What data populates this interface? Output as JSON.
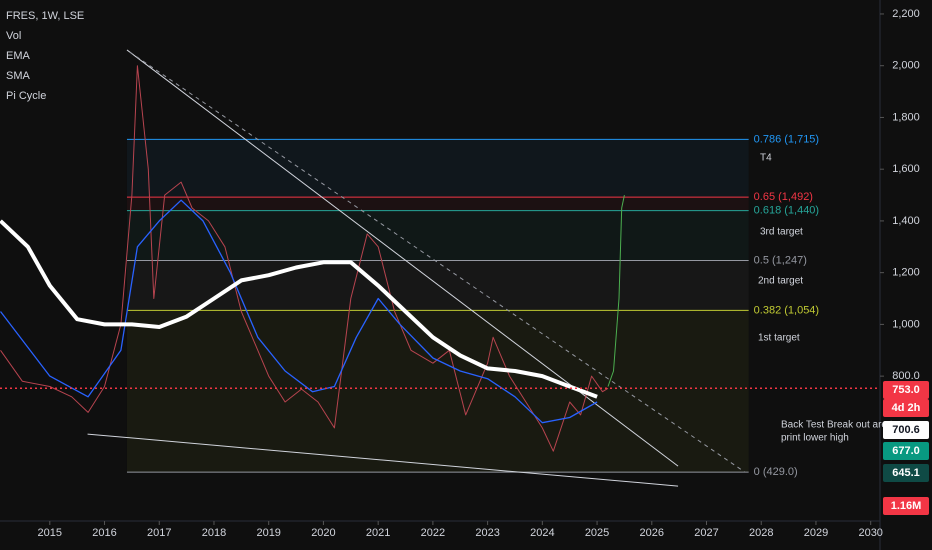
{
  "chart_data": {
    "type": "line",
    "title": "FRES, 1W, LSE",
    "indicators": [
      "Vol",
      "EMA",
      "SMA",
      "Pi Cycle"
    ],
    "xlim": [
      2014.09,
      2030.17
    ],
    "ylim": [
      240,
      2254
    ],
    "xticks": [
      2015,
      2016,
      2017,
      2018,
      2019,
      2020,
      2021,
      2022,
      2023,
      2024,
      2025,
      2026,
      2027,
      2028,
      2029,
      2030
    ],
    "yticks": [
      {
        "value": 800,
        "label": "800.0"
      },
      {
        "value": 1000,
        "label": "1,000"
      },
      {
        "value": 1200,
        "label": "1,200"
      },
      {
        "value": 1400,
        "label": "1,400"
      },
      {
        "value": 1600,
        "label": "1,600"
      },
      {
        "value": 1800,
        "label": "1,800"
      },
      {
        "value": 2000,
        "label": "2,000"
      },
      {
        "value": 2200,
        "label": "2,200"
      }
    ],
    "series": [
      {
        "color": "#b7444f",
        "width": 1,
        "x": [
          2014.1,
          2014.5,
          2015,
          2015.4,
          2015.7,
          2016,
          2016.3,
          2016.5,
          2016.6,
          2016.8,
          2016.9,
          2017.1,
          2017.4,
          2017.6,
          2017.9,
          2018.2,
          2018.5,
          2018.8,
          2019,
          2019.3,
          2019.6,
          2019.9,
          2020.2,
          2020.5,
          2020.8,
          2021,
          2021.3,
          2021.6,
          2022,
          2022.3,
          2022.6,
          2023,
          2023.1,
          2023.4,
          2023.7,
          2024,
          2024.2,
          2024.5,
          2024.7,
          2024.9,
          2025.1,
          2025.2
        ],
        "values": [
          900,
          780,
          760,
          720,
          660,
          760,
          1000,
          1500,
          2000,
          1600,
          1100,
          1500,
          1550,
          1450,
          1400,
          1300,
          1050,
          900,
          800,
          700,
          750,
          700,
          600,
          1100,
          1350,
          1300,
          1050,
          900,
          850,
          900,
          650,
          850,
          950,
          800,
          700,
          600,
          510,
          700,
          650,
          800,
          740,
          753
        ]
      },
      {
        "color": "#2962ff",
        "width": 1.3,
        "x": [
          2014.1,
          2015,
          2015.7,
          2016.3,
          2016.6,
          2017,
          2017.4,
          2017.8,
          2018.3,
          2018.8,
          2019.3,
          2019.8,
          2020.2,
          2020.6,
          2021,
          2021.4,
          2022,
          2022.5,
          2023,
          2023.5,
          2024,
          2024.5,
          2025
        ],
        "values": [
          1050,
          800,
          720,
          900,
          1300,
          1400,
          1480,
          1400,
          1200,
          950,
          820,
          740,
          760,
          950,
          1100,
          1000,
          870,
          820,
          790,
          720,
          620,
          640,
          700
        ]
      },
      {
        "color": "#ffffff",
        "width": 4,
        "x": [
          2014.1,
          2014.6,
          2015,
          2015.5,
          2016,
          2016.5,
          2017,
          2017.5,
          2018,
          2018.5,
          2019,
          2019.5,
          2020,
          2020.5,
          2021,
          2021.5,
          2022,
          2022.5,
          2023,
          2023.5,
          2024,
          2024.5,
          2025
        ],
        "values": [
          1400,
          1300,
          1150,
          1020,
          1000,
          1000,
          990,
          1030,
          1100,
          1170,
          1190,
          1220,
          1240,
          1240,
          1150,
          1050,
          950,
          880,
          830,
          820,
          800,
          760,
          720
        ]
      },
      {
        "color": "#4caf50",
        "width": 1,
        "x": [
          2025.2,
          2025.3,
          2025.4,
          2025.45,
          2025.5
        ],
        "values": [
          760,
          820,
          1100,
          1450,
          1500
        ]
      }
    ],
    "trendlines": [
      {
        "color": "#d1d4dc",
        "dash": false,
        "x": [
          2016.41,
          2026.48
        ],
        "values": [
          2061,
          452
        ]
      },
      {
        "color": "#9598a1",
        "dash": true,
        "x": [
          2016.46,
          2027.7
        ],
        "values": [
          2053,
          429
        ]
      },
      {
        "color": "#d1d4dc",
        "dash": false,
        "x": [
          2015.69,
          2026.48
        ],
        "values": [
          576,
          375
        ]
      }
    ],
    "fib_x": [
      2016.41,
      2027.77
    ],
    "fib_levels": [
      {
        "value": 1715,
        "label": "0.786 (1,715)",
        "color": "#2196f3"
      },
      {
        "value": 1492,
        "label": "0.65 (1,492)",
        "color": "#f23645"
      },
      {
        "value": 1440,
        "label": "0.618 (1,440)",
        "color": "#26a69a"
      },
      {
        "value": 1247,
        "label": "0.5 (1,247)",
        "color": "#9598a1"
      },
      {
        "value": 1054,
        "label": "0.382 (1,054)",
        "color": "#c0ca33"
      },
      {
        "value": 429,
        "label": "0 (429.0)",
        "color": "#9598a1"
      }
    ],
    "annotations": [
      "T4",
      "3rd target",
      "2nd target",
      "1st target",
      "Back Test Break out are to",
      "print lower high"
    ],
    "last_price": 753,
    "price_tags": [
      {
        "label": "753.0",
        "bg": "#f23645",
        "fg": "#ffffff"
      },
      {
        "label": "4d 2h",
        "bg": "#f23645",
        "fg": "#ffffff"
      },
      {
        "label": "700.6",
        "bg": "#ffffff",
        "fg": "#131722"
      },
      {
        "label": "677.0",
        "bg": "#089981",
        "fg": "#ffffff"
      },
      {
        "label": "645.1",
        "bg": "#0f4a45",
        "fg": "#ffffff"
      },
      {
        "label": "1.16M",
        "bg": "#f23645",
        "fg": "#ffffff"
      }
    ]
  }
}
